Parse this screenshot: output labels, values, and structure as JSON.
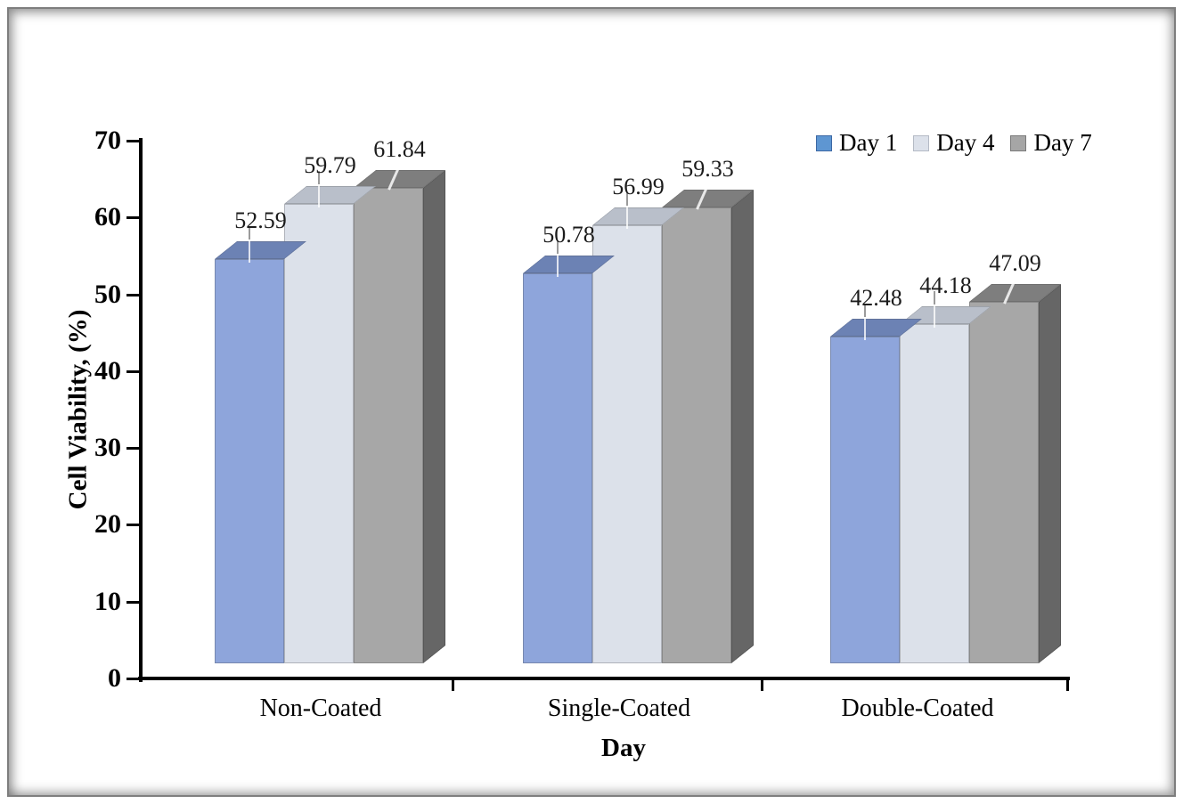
{
  "chart_data": {
    "type": "bar",
    "subtype": "3d-clustered-column",
    "title": "",
    "xlabel": "Day",
    "ylabel": "Cell Viability, (%)",
    "ylim": [
      0,
      70
    ],
    "ytick_step": 10,
    "grid": false,
    "legend_position": "top-right",
    "categories": [
      "Non-Coated",
      "Single-Coated",
      "Double-Coated"
    ],
    "series": [
      {
        "name": "Day 1",
        "values": [
          52.59,
          50.78,
          42.48
        ],
        "front_color": "#8EA5DB",
        "top_color": "#6C82B4",
        "side_color": "#5A6E9C",
        "legend_swatch_color": "#5E96D2",
        "legend_swatch_border": "#3C68A4"
      },
      {
        "name": "Day 4",
        "values": [
          59.79,
          56.99,
          44.18
        ],
        "front_color": "#DCE1EA",
        "top_color": "#B9BFCA",
        "side_color": "#9AA1AE",
        "legend_swatch_color": "#DCE1EA",
        "legend_swatch_border": "#B4BAC5"
      },
      {
        "name": "Day 7",
        "values": [
          61.84,
          59.33,
          47.09
        ],
        "front_color": "#A7A7A7",
        "top_color": "#7E7E7E",
        "side_color": "#666666",
        "legend_swatch_color": "#A6A6A6",
        "legend_swatch_border": "#7A7A7A"
      }
    ],
    "value_label_decimals": 2,
    "axis_color": "#000000"
  }
}
